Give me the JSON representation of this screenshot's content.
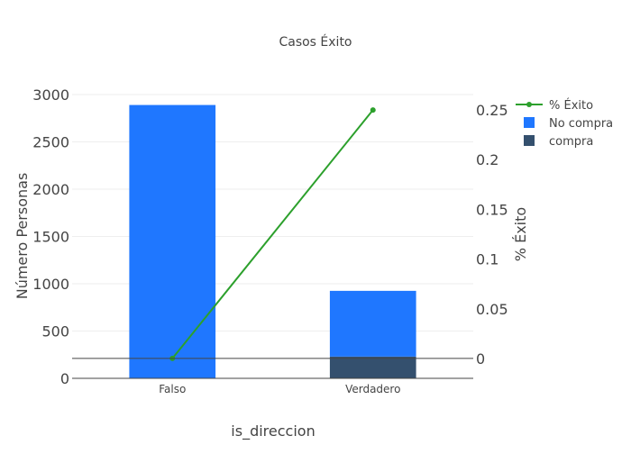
{
  "chart_data": {
    "type": "bar",
    "title": "Casos Éxito",
    "xlabel": "is_direccion",
    "ylabel": "Número Personas",
    "y2label": "% Éxito",
    "categories": [
      "Falso",
      "Verdadero"
    ],
    "ylim": [
      0,
      3000
    ],
    "y2lim": [
      -0.02,
      0.27
    ],
    "y_ticks": [
      0,
      500,
      1000,
      1500,
      2000,
      2500,
      3000
    ],
    "y2_ticks": [
      0,
      0.05,
      0.1,
      0.15,
      0.2,
      0.25
    ],
    "y2_tick_labels": [
      "0",
      "0.05",
      "0.1",
      "0.15",
      "0.2",
      "0.25"
    ],
    "grid": true,
    "legend_position": "top-right",
    "series": [
      {
        "name": "% Éxito",
        "kind": "line",
        "axis": "y2",
        "color": "#2ca02c",
        "values": [
          0.0,
          0.25
        ]
      },
      {
        "name": "No compra",
        "kind": "bar",
        "axis": "y",
        "color": "#1f77ff",
        "values": [
          2890,
          695
        ]
      },
      {
        "name": "compra",
        "kind": "bar",
        "axis": "y",
        "color": "#34506e",
        "values": [
          0,
          230
        ]
      }
    ]
  }
}
